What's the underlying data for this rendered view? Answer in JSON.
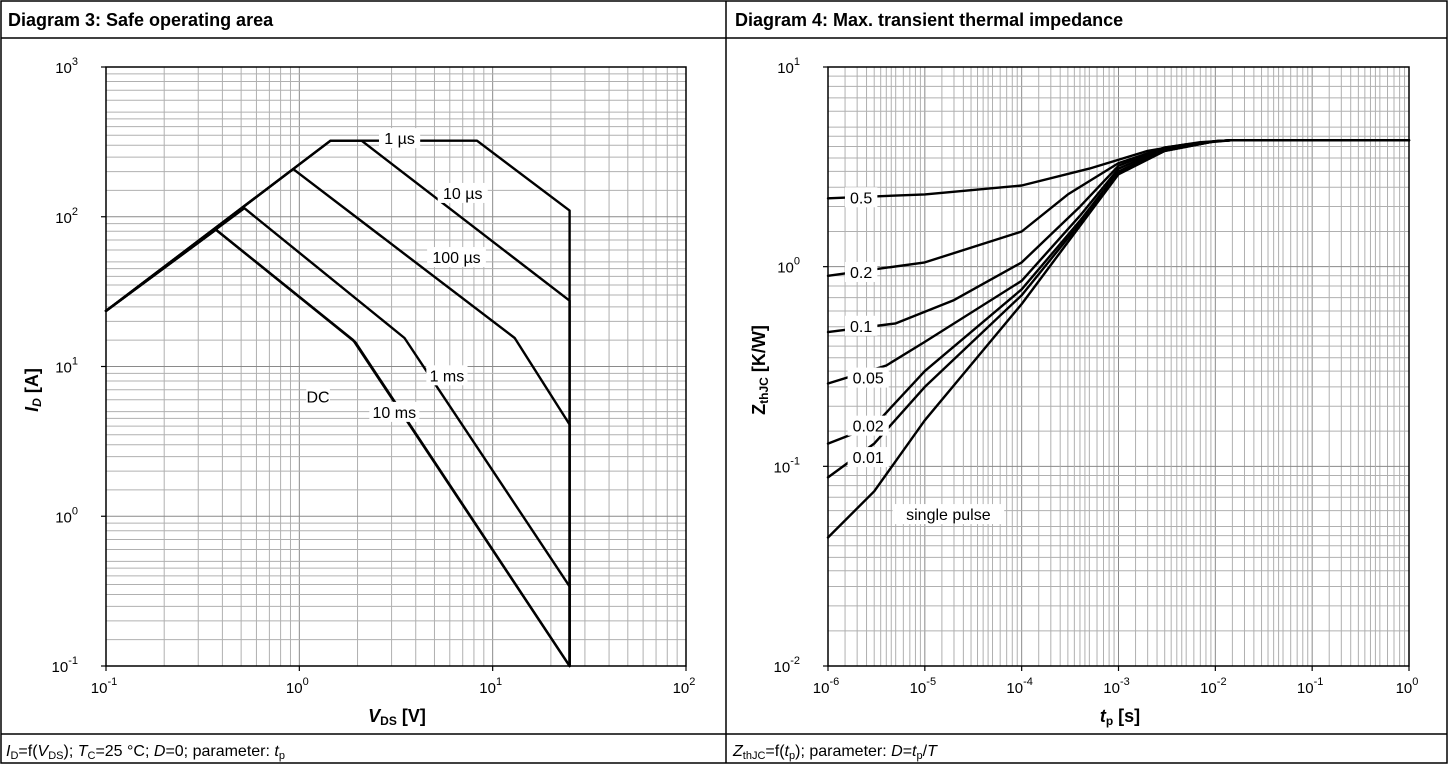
{
  "panels": {
    "left": {
      "title": "Diagram 3: Safe operating area",
      "caption": {
        "i": "I",
        "d_sub": "D",
        "eq": "=f(",
        "v": "V",
        "ds_sub": "DS",
        "sep": "); ",
        "t": "T",
        "c_sub": "C",
        "temp": "=25 °C; ",
        "dvar": "D",
        "duty": "=0; parameter: ",
        "tp": "t",
        "p_sub": "p"
      },
      "ylabel_main": "I",
      "ylabel_sub": "D",
      "ylabel_unit": " [A]",
      "xlabel_main": "V",
      "xlabel_sub": "DS",
      "xlabel_unit": " [V]"
    },
    "right": {
      "title": "Diagram 4: Max. transient thermal impedance",
      "caption": {
        "z": "Z",
        "thjc_sub": "thJC",
        "eq": "=f(",
        "t": "t",
        "p_sub": "p",
        "sep": "); parameter: ",
        "d": "D",
        "eq2": "=",
        "t2": "t",
        "p_sub2": "p",
        "slash": "/",
        "T": "T"
      },
      "ylabel_main": "Z",
      "ylabel_sub": "thJC",
      "ylabel_unit": " [K/W]",
      "xlabel_main": "t",
      "xlabel_sub": "p",
      "xlabel_unit": " [s]"
    }
  },
  "chart_data": [
    {
      "type": "line",
      "title": "Diagram 3: Safe operating area",
      "xlabel": "VDS [V]",
      "ylabel": "ID [A]",
      "xscale": "log",
      "yscale": "log",
      "xlim": [
        0.1,
        100
      ],
      "ylim": [
        0.1,
        1000
      ],
      "x_ticks": [
        {
          "base": "10",
          "exp": "-1"
        },
        {
          "base": "10",
          "exp": "0"
        },
        {
          "base": "10",
          "exp": "1"
        },
        {
          "base": "10",
          "exp": "2"
        }
      ],
      "y_ticks": [
        {
          "base": "10",
          "exp": "-1"
        },
        {
          "base": "10",
          "exp": "0"
        },
        {
          "base": "10",
          "exp": "1"
        },
        {
          "base": "10",
          "exp": "2"
        },
        {
          "base": "10",
          "exp": "3"
        }
      ],
      "grid": true,
      "series": [
        {
          "name": "1 µs",
          "points": [
            [
              0.1,
              23.5
            ],
            [
              1.45,
              322
            ],
            [
              8.3,
              322
            ],
            [
              25,
              110
            ],
            [
              25,
              0.1
            ]
          ]
        },
        {
          "name": "10 µs",
          "points": [
            [
              0.1,
              23.5
            ],
            [
              1.45,
              322
            ],
            [
              2.1,
              322
            ],
            [
              25,
              27.5
            ],
            [
              25,
              0.1
            ]
          ]
        },
        {
          "name": "100 µs",
          "points": [
            [
              0.1,
              23.5
            ],
            [
              0.93,
              208
            ],
            [
              13,
              15.5
            ],
            [
              25,
              4.1
            ],
            [
              25,
              0.1
            ]
          ]
        },
        {
          "name": "1 ms",
          "points": [
            [
              0.1,
              23.5
            ],
            [
              0.52,
              114
            ],
            [
              3.5,
              15.5
            ],
            [
              25,
              0.34
            ],
            [
              25,
              0.1
            ]
          ]
        },
        {
          "name": "10 ms",
          "points": [
            [
              0.1,
              23.5
            ],
            [
              0.37,
              82
            ],
            [
              1.95,
              14.5
            ],
            [
              25,
              0.1
            ]
          ]
        },
        {
          "name": "DC",
          "points": [
            [
              0.1,
              23.5
            ],
            [
              0.37,
              82
            ],
            [
              1.9,
              15
            ],
            [
              25,
              0.1
            ]
          ]
        }
      ],
      "annotations": [
        "1 µs",
        "10 µs",
        "100 µs",
        "1 ms",
        "DC",
        "10 ms"
      ]
    },
    {
      "type": "line",
      "title": "Diagram 4: Max. transient thermal impedance",
      "xlabel": "tp [s]",
      "ylabel": "ZthJC [K/W]",
      "xscale": "log",
      "yscale": "log",
      "xlim": [
        1e-06,
        1
      ],
      "ylim": [
        0.01,
        10
      ],
      "x_ticks": [
        {
          "base": "10",
          "exp": "-6"
        },
        {
          "base": "10",
          "exp": "-5"
        },
        {
          "base": "10",
          "exp": "-4"
        },
        {
          "base": "10",
          "exp": "-3"
        },
        {
          "base": "10",
          "exp": "-2"
        },
        {
          "base": "10",
          "exp": "-1"
        },
        {
          "base": "10",
          "exp": "0"
        }
      ],
      "y_ticks": [
        {
          "base": "10",
          "exp": "-2"
        },
        {
          "base": "10",
          "exp": "-1"
        },
        {
          "base": "10",
          "exp": "0"
        },
        {
          "base": "10",
          "exp": "1"
        }
      ],
      "grid": true,
      "series": [
        {
          "name": "0.5",
          "points": [
            [
              1e-06,
              2.2
            ],
            [
              1e-05,
              2.3
            ],
            [
              0.0001,
              2.55
            ],
            [
              0.0005,
              3.1
            ],
            [
              0.002,
              3.8
            ],
            [
              0.005,
              4.1
            ],
            [
              0.015,
              4.3
            ],
            [
              1,
              4.3
            ]
          ]
        },
        {
          "name": "0.2",
          "points": [
            [
              1e-06,
              0.9
            ],
            [
              1e-05,
              1.05
            ],
            [
              0.0001,
              1.5
            ],
            [
              0.0003,
              2.3
            ],
            [
              0.001,
              3.3
            ],
            [
              0.003,
              3.95
            ],
            [
              0.007,
              4.2
            ],
            [
              0.015,
              4.3
            ],
            [
              1,
              4.3
            ]
          ]
        },
        {
          "name": "0.1",
          "points": [
            [
              1e-06,
              0.47
            ],
            [
              5e-06,
              0.52
            ],
            [
              2e-05,
              0.68
            ],
            [
              0.0001,
              1.05
            ],
            [
              0.0004,
              2.0
            ],
            [
              0.001,
              3.2
            ],
            [
              0.003,
              3.95
            ],
            [
              0.01,
              4.25
            ],
            [
              0.015,
              4.3
            ],
            [
              1,
              4.3
            ]
          ]
        },
        {
          "name": "0.05",
          "points": [
            [
              1e-06,
              0.26
            ],
            [
              4e-06,
              0.32
            ],
            [
              1e-05,
              0.42
            ],
            [
              0.0001,
              0.85
            ],
            [
              0.0004,
              1.8
            ],
            [
              0.001,
              3.1
            ],
            [
              0.003,
              3.9
            ],
            [
              0.01,
              4.25
            ],
            [
              0.015,
              4.3
            ],
            [
              1,
              4.3
            ]
          ]
        },
        {
          "name": "0.02",
          "points": [
            [
              1e-06,
              0.13
            ],
            [
              3e-06,
              0.16
            ],
            [
              1e-05,
              0.3
            ],
            [
              0.0001,
              0.77
            ],
            [
              0.0004,
              1.7
            ],
            [
              0.001,
              3.0
            ],
            [
              0.003,
              3.85
            ],
            [
              0.01,
              4.25
            ],
            [
              0.015,
              4.3
            ],
            [
              1,
              4.3
            ]
          ]
        },
        {
          "name": "0.01",
          "points": [
            [
              1e-06,
              0.088
            ],
            [
              3e-06,
              0.13
            ],
            [
              1e-05,
              0.25
            ],
            [
              0.0001,
              0.72
            ],
            [
              0.0004,
              1.65
            ],
            [
              0.001,
              2.95
            ],
            [
              0.003,
              3.8
            ],
            [
              0.01,
              4.25
            ],
            [
              0.015,
              4.3
            ],
            [
              1,
              4.3
            ]
          ]
        },
        {
          "name": "single pulse",
          "points": [
            [
              1e-06,
              0.044
            ],
            [
              3e-06,
              0.075
            ],
            [
              1e-05,
              0.17
            ],
            [
              0.0001,
              0.65
            ],
            [
              0.0004,
              1.6
            ],
            [
              0.001,
              2.9
            ],
            [
              0.003,
              3.8
            ],
            [
              0.01,
              4.25
            ],
            [
              0.015,
              4.3
            ],
            [
              1,
              4.3
            ]
          ]
        }
      ],
      "annotations": [
        "0.5",
        "0.2",
        "0.1",
        "0.05",
        "0.02",
        "0.01",
        "single pulse"
      ]
    }
  ]
}
